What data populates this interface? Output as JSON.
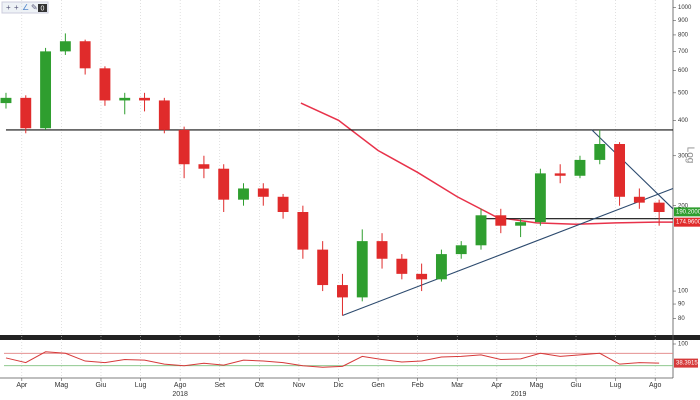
{
  "toolbar": {
    "badge": "0"
  },
  "chart_data": [
    {
      "type": "candlestick",
      "log": true,
      "scale_label": "Log",
      "up_color": "#2f9e2f",
      "down_color": "#e02b2b",
      "xlim": [
        -0.45,
        16.45
      ],
      "ylim": [
        70,
        1020
      ],
      "yticks": [
        80,
        90,
        100,
        200,
        300,
        400,
        500,
        600,
        700,
        800,
        900,
        1000
      ],
      "x": [
        -0.4,
        0.1,
        0.6,
        1.1,
        1.6,
        2.1,
        2.6,
        3.1,
        3.6,
        4.1,
        4.6,
        5.1,
        5.6,
        6.1,
        6.6,
        7.1,
        7.6,
        8.1,
        8.6,
        9.1,
        9.6,
        10.1,
        10.6,
        11.1,
        11.6,
        12.1,
        12.6,
        13.1,
        13.6,
        14.1,
        14.6,
        15.1,
        15.6,
        16.1
      ],
      "open": [
        460,
        480,
        375,
        700,
        760,
        610,
        470,
        480,
        470,
        370,
        280,
        270,
        210,
        230,
        215,
        190,
        140,
        105,
        95,
        150,
        130,
        115,
        110,
        135,
        145,
        185,
        170,
        175,
        260,
        255,
        290,
        330,
        215,
        205
      ],
      "high": [
        500,
        490,
        720,
        810,
        770,
        620,
        500,
        500,
        480,
        380,
        300,
        280,
        240,
        240,
        220,
        200,
        150,
        115,
        165,
        160,
        135,
        125,
        140,
        150,
        195,
        195,
        180,
        270,
        280,
        300,
        370,
        335,
        230,
        210
      ],
      "low": [
        440,
        360,
        370,
        680,
        580,
        450,
        420,
        430,
        360,
        250,
        250,
        190,
        200,
        200,
        180,
        130,
        100,
        82,
        92,
        120,
        110,
        100,
        108,
        130,
        140,
        160,
        155,
        170,
        240,
        250,
        280,
        200,
        195,
        170
      ],
      "close": [
        480,
        375,
        700,
        760,
        610,
        470,
        480,
        470,
        370,
        280,
        270,
        210,
        230,
        215,
        190,
        140,
        105,
        95,
        150,
        130,
        115,
        110,
        135,
        145,
        185,
        170,
        175,
        260,
        255,
        290,
        330,
        215,
        205,
        190
      ],
      "moving_average": {
        "color": "#e8324a",
        "x": [
          7.05,
          8,
          9,
          10,
          11,
          12,
          13,
          14,
          15,
          16,
          16.45
        ],
        "y": [
          460,
          400,
          313,
          262,
          215,
          182,
          174,
          172,
          174,
          175,
          175
        ]
      },
      "lines": [
        {
          "color": "#111111",
          "x": [
            -0.4,
            16.45
          ],
          "y": [
            370,
            370
          ]
        },
        {
          "color": "#111111",
          "x": [
            11.7,
            16.45
          ],
          "y": [
            180,
            180
          ]
        },
        {
          "color": "#2c4a6e",
          "x": [
            8.1,
            16.45
          ],
          "y": [
            82,
            230
          ]
        },
        {
          "color": "#2c4a6e",
          "x": [
            14.4,
            16.45
          ],
          "y": [
            370,
            195
          ]
        }
      ],
      "price_labels": [
        {
          "value": 190.2,
          "label": "190.2000",
          "color": "#2f9e2f"
        },
        {
          "value": 174.96,
          "label": "174.9600",
          "color": "#e02b2b"
        }
      ]
    },
    {
      "type": "line",
      "color": "#d63a3a",
      "xlim": [
        -0.45,
        16.45
      ],
      "ylim": [
        0,
        100
      ],
      "yticks": [
        100
      ],
      "reference_lines": [
        {
          "value": 70,
          "color": "#e08080"
        },
        {
          "value": 30,
          "color": "#7fc07f"
        }
      ],
      "x": [
        -0.4,
        0.1,
        0.6,
        1.1,
        1.6,
        2.1,
        2.6,
        3.1,
        3.6,
        4.1,
        4.6,
        5.1,
        5.6,
        6.1,
        6.6,
        7.1,
        7.6,
        8.1,
        8.6,
        9.1,
        9.6,
        10.1,
        10.6,
        11.1,
        11.6,
        12.1,
        12.6,
        13.1,
        13.6,
        14.1,
        14.6,
        15.1,
        15.6,
        16.1
      ],
      "values": [
        55,
        40,
        75,
        70,
        45,
        40,
        50,
        48,
        35,
        30,
        38,
        32,
        48,
        45,
        40,
        30,
        25,
        28,
        60,
        50,
        42,
        45,
        58,
        60,
        65,
        50,
        52,
        70,
        60,
        65,
        70,
        35,
        40,
        38.3915
      ],
      "last_label": {
        "value": 38.3915,
        "label": "38.3915"
      },
      "xticks": [
        {
          "value": 0,
          "label": "Apr"
        },
        {
          "value": 1,
          "label": "Mag"
        },
        {
          "value": 2,
          "label": "Giu"
        },
        {
          "value": 3,
          "label": "Lug"
        },
        {
          "value": 4,
          "label": "Ago"
        },
        {
          "value": 5,
          "label": "Set"
        },
        {
          "value": 6,
          "label": "Ott"
        },
        {
          "value": 7,
          "label": "Nov"
        },
        {
          "value": 8,
          "label": "Dic"
        },
        {
          "value": 9,
          "label": "Gen"
        },
        {
          "value": 10,
          "label": "Feb"
        },
        {
          "value": 11,
          "label": "Mar"
        },
        {
          "value": 12,
          "label": "Apr"
        },
        {
          "value": 13,
          "label": "Mag"
        },
        {
          "value": 14,
          "label": "Giu"
        },
        {
          "value": 15,
          "label": "Lug"
        },
        {
          "value": 16,
          "label": "Ago"
        }
      ],
      "year_labels": [
        {
          "value": 4,
          "label": "2018"
        },
        {
          "value": 12.55,
          "label": "2019"
        }
      ]
    }
  ]
}
